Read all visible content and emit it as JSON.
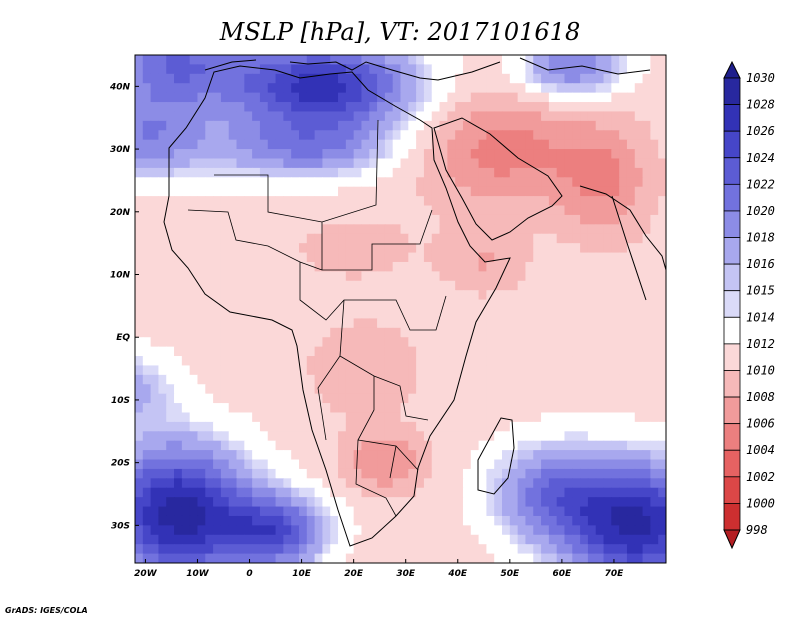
{
  "chart_data": {
    "type": "heatmap",
    "title": "MSLP [hPa], VT: 2017101618",
    "variable": "MSLP",
    "units": "hPa",
    "valid_time": "2017101618",
    "x_range": [
      -22,
      80
    ],
    "y_range": [
      -36,
      45
    ],
    "x_ticks": [
      {
        "value": -20,
        "label": "20W"
      },
      {
        "value": -10,
        "label": "10W"
      },
      {
        "value": 0,
        "label": "0"
      },
      {
        "value": 10,
        "label": "10E"
      },
      {
        "value": 20,
        "label": "20E"
      },
      {
        "value": 30,
        "label": "30E"
      },
      {
        "value": 40,
        "label": "40E"
      },
      {
        "value": 50,
        "label": "50E"
      },
      {
        "value": 60,
        "label": "60E"
      },
      {
        "value": 70,
        "label": "70E"
      }
    ],
    "y_ticks": [
      {
        "value": 40,
        "label": "40N"
      },
      {
        "value": 30,
        "label": "30N"
      },
      {
        "value": 20,
        "label": "20N"
      },
      {
        "value": 10,
        "label": "10N"
      },
      {
        "value": 0,
        "label": "EQ"
      },
      {
        "value": -10,
        "label": "10S"
      },
      {
        "value": -20,
        "label": "20S"
      },
      {
        "value": -30,
        "label": "30S"
      }
    ],
    "colorbar": {
      "levels": [
        998,
        1000,
        1002,
        1004,
        1006,
        1008,
        1010,
        1012,
        1014,
        1015,
        1016,
        1018,
        1020,
        1022,
        1024,
        1026,
        1028,
        1030
      ],
      "labels": [
        "998",
        "1000",
        "1002",
        "1004",
        "1006",
        "1008",
        "1010",
        "1012",
        "1014",
        "1015",
        "1016",
        "1018",
        "1020",
        "1022",
        "1024",
        "1026",
        "1028",
        "1030"
      ],
      "colors": [
        "#b41e23",
        "#cd2f30",
        "#dc4747",
        "#e66262",
        "#ec7f7f",
        "#f19b9b",
        "#f6b9b9",
        "#fbd8d8",
        "#ffffff",
        "#dadaf8",
        "#c4c4f4",
        "#a8a8ee",
        "#8c8ce6",
        "#7272de",
        "#5c5cd4",
        "#4646c8",
        "#3232b6",
        "#28289f",
        "#1e1e8c"
      ]
    },
    "field": {
      "base": 1011,
      "features": [
        {
          "kind": "high",
          "lon": -15,
          "lat": 44,
          "amp": 10,
          "sx": 14,
          "sy": 7
        },
        {
          "kind": "high",
          "lon": 14,
          "lat": 40,
          "amp": 16,
          "sx": 18,
          "sy": 7
        },
        {
          "kind": "high",
          "lon": 62,
          "lat": 43,
          "amp": 9,
          "sx": 10,
          "sy": 5
        },
        {
          "kind": "high",
          "lon": -20,
          "lat": 32,
          "amp": 8,
          "sx": 12,
          "sy": 7
        },
        {
          "kind": "high",
          "lon": 10,
          "lat": 30,
          "amp": 8,
          "sx": 18,
          "sy": 5
        },
        {
          "kind": "high",
          "lon": -14,
          "lat": -28,
          "amp": 18,
          "sx": 14,
          "sy": 11
        },
        {
          "kind": "high",
          "lon": 5,
          "lat": -31,
          "amp": 12,
          "sx": 10,
          "sy": 6
        },
        {
          "kind": "high",
          "lon": 75,
          "lat": -30,
          "amp": 17,
          "sx": 14,
          "sy": 10
        },
        {
          "kind": "high",
          "lon": 58,
          "lat": -25,
          "amp": 9,
          "sx": 12,
          "sy": 8
        },
        {
          "kind": "high",
          "lon": -22,
          "lat": -8,
          "amp": 5,
          "sx": 8,
          "sy": 6
        },
        {
          "kind": "low",
          "lon": 48,
          "lat": 30,
          "amp": 6,
          "sx": 16,
          "sy": 9
        },
        {
          "kind": "low",
          "lon": 68,
          "lat": 25,
          "amp": 5,
          "sx": 9,
          "sy": 9
        },
        {
          "kind": "low",
          "lon": 22,
          "lat": -5,
          "amp": 3,
          "sx": 10,
          "sy": 7
        },
        {
          "kind": "low",
          "lon": 26,
          "lat": -20,
          "amp": 5,
          "sx": 8,
          "sy": 5
        },
        {
          "kind": "low",
          "lon": 45,
          "lat": 12,
          "amp": 3,
          "sx": 8,
          "sy": 5
        },
        {
          "kind": "low",
          "lon": 20,
          "lat": 14,
          "amp": 2,
          "sx": 12,
          "sy": 5
        }
      ]
    },
    "credit": "GrADS: IGES/COLA"
  }
}
